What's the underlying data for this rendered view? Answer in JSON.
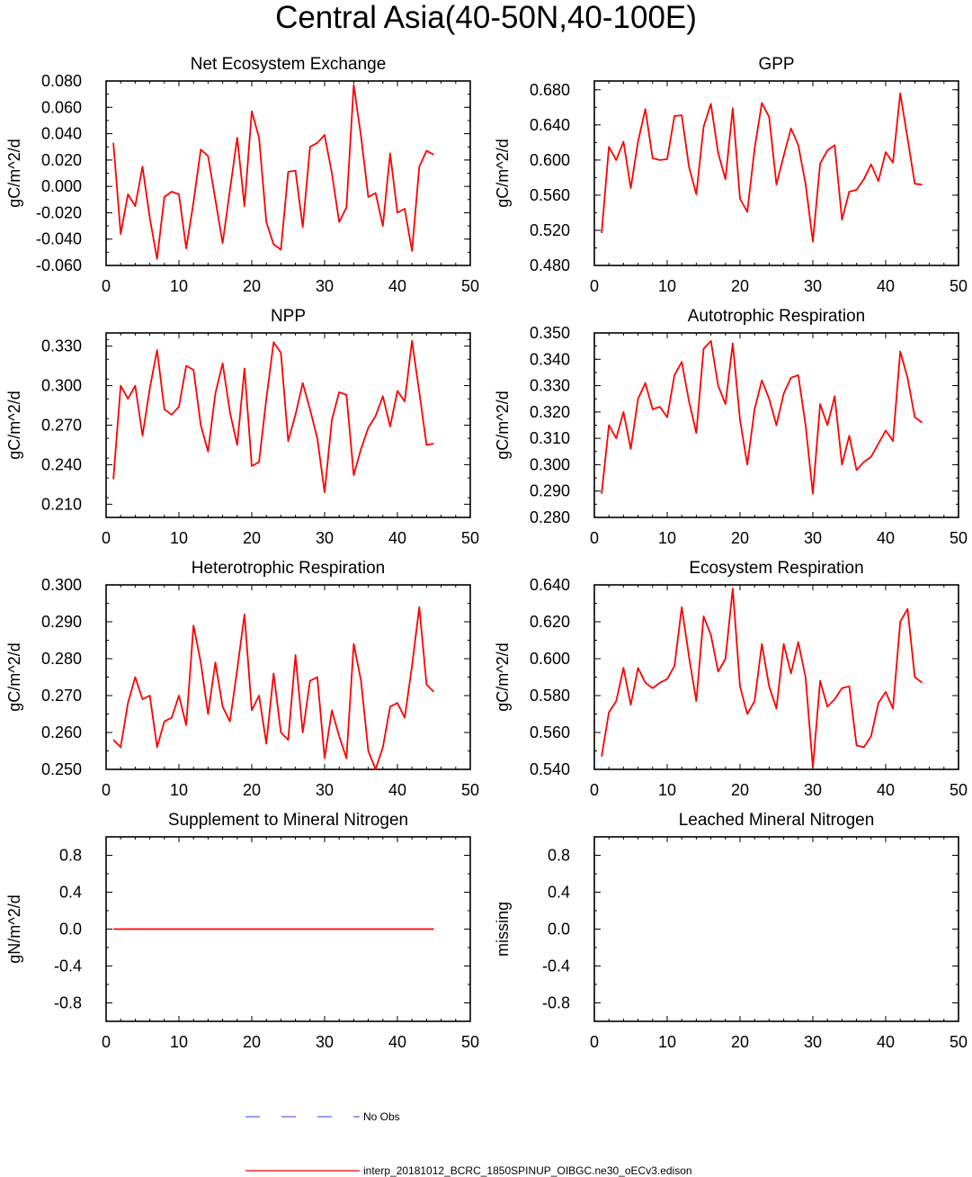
{
  "figure_title": "Central Asia(40-50N,40-100E)",
  "colors": {
    "model_line": "#ff0000",
    "obs_line": "#6060ff",
    "axes": "#000000"
  },
  "legend": [
    {
      "label": "No Obs",
      "style": "dashed",
      "color": "#6060ff"
    },
    {
      "label": "interp_20181012_BCRC_1850SPINUP_OIBGC.ne30_oECv3.edison",
      "style": "solid",
      "color": "#ff0000"
    }
  ],
  "chart_data": [
    {
      "type": "line",
      "title": "Net Ecosystem Exchange",
      "ylabel": "gC/m^2/d",
      "xlim": [
        0,
        50
      ],
      "ylim": [
        -0.06,
        0.08
      ],
      "xticks": [
        0,
        10,
        20,
        30,
        40,
        50
      ],
      "yticks": [
        "-0.060",
        "-0.040",
        "-0.020",
        "0.000",
        "0.020",
        "0.040",
        "0.060",
        "0.080"
      ],
      "series": [
        {
          "values": [
            0.033,
            -0.036,
            -0.006,
            -0.015,
            0.015,
            -0.024,
            -0.055,
            -0.008,
            -0.004,
            -0.006,
            -0.047,
            -0.012,
            0.028,
            0.023,
            -0.01,
            -0.043,
            -0.003,
            0.037,
            -0.015,
            0.057,
            0.037,
            -0.027,
            -0.044,
            -0.048,
            0.011,
            0.012,
            -0.031,
            0.03,
            0.033,
            0.039,
            0.01,
            -0.027,
            -0.016,
            0.077,
            0.038,
            -0.008,
            -0.005,
            -0.03,
            0.025,
            -0.02,
            -0.017,
            -0.049,
            0.015,
            0.027,
            0.024
          ]
        }
      ]
    },
    {
      "type": "line",
      "title": "GPP",
      "ylabel": "gC/m^2/d",
      "xlim": [
        0,
        50
      ],
      "ylim": [
        0.48,
        0.69
      ],
      "xticks": [
        0,
        10,
        20,
        30,
        40,
        50
      ],
      "yticks": [
        "0.480",
        "0.520",
        "0.560",
        "0.600",
        "0.640",
        "0.680"
      ],
      "series": [
        {
          "values": [
            0.517,
            0.615,
            0.6,
            0.621,
            0.568,
            0.621,
            0.658,
            0.602,
            0.6,
            0.601,
            0.65,
            0.651,
            0.592,
            0.561,
            0.638,
            0.664,
            0.608,
            0.578,
            0.659,
            0.556,
            0.541,
            0.613,
            0.665,
            0.649,
            0.572,
            0.605,
            0.636,
            0.617,
            0.573,
            0.507,
            0.596,
            0.611,
            0.617,
            0.532,
            0.564,
            0.566,
            0.578,
            0.595,
            0.576,
            0.609,
            0.597,
            0.676,
            0.625,
            0.573,
            0.572
          ]
        }
      ]
    },
    {
      "type": "line",
      "title": "NPP",
      "ylabel": "gC/m^2/d",
      "xlim": [
        0,
        50
      ],
      "ylim": [
        0.2,
        0.34
      ],
      "xticks": [
        0,
        10,
        20,
        30,
        40,
        50
      ],
      "yticks": [
        "0.210",
        "0.240",
        "0.270",
        "0.300",
        "0.330"
      ],
      "series": [
        {
          "values": [
            0.229,
            0.3,
            0.29,
            0.3,
            0.262,
            0.298,
            0.327,
            0.282,
            0.278,
            0.284,
            0.315,
            0.312,
            0.27,
            0.25,
            0.294,
            0.317,
            0.28,
            0.255,
            0.313,
            0.239,
            0.242,
            0.29,
            0.333,
            0.325,
            0.258,
            0.278,
            0.302,
            0.282,
            0.26,
            0.219,
            0.274,
            0.295,
            0.293,
            0.232,
            0.252,
            0.268,
            0.277,
            0.292,
            0.269,
            0.296,
            0.288,
            0.334,
            0.295,
            0.255,
            0.256
          ]
        }
      ]
    },
    {
      "type": "line",
      "title": "Autotrophic Respiration",
      "ylabel": "gC/m^2/d",
      "xlim": [
        0,
        50
      ],
      "ylim": [
        0.28,
        0.35
      ],
      "xticks": [
        0,
        10,
        20,
        30,
        40,
        50
      ],
      "yticks": [
        "0.280",
        "0.290",
        "0.300",
        "0.310",
        "0.320",
        "0.330",
        "0.340",
        "0.350"
      ],
      "series": [
        {
          "values": [
            0.289,
            0.315,
            0.31,
            0.32,
            0.306,
            0.325,
            0.331,
            0.321,
            0.322,
            0.318,
            0.334,
            0.339,
            0.324,
            0.312,
            0.344,
            0.347,
            0.33,
            0.323,
            0.346,
            0.317,
            0.3,
            0.321,
            0.332,
            0.325,
            0.315,
            0.327,
            0.333,
            0.334,
            0.315,
            0.289,
            0.323,
            0.315,
            0.326,
            0.3,
            0.311,
            0.298,
            0.301,
            0.303,
            0.308,
            0.313,
            0.309,
            0.343,
            0.333,
            0.318,
            0.316
          ]
        }
      ]
    },
    {
      "type": "line",
      "title": "Heterotrophic Respiration",
      "ylabel": "gC/m^2/d",
      "xlim": [
        0,
        50
      ],
      "ylim": [
        0.25,
        0.3
      ],
      "xticks": [
        0,
        10,
        20,
        30,
        40,
        50
      ],
      "yticks": [
        "0.250",
        "0.260",
        "0.270",
        "0.280",
        "0.290",
        "0.300"
      ],
      "series": [
        {
          "values": [
            0.258,
            0.256,
            0.268,
            0.275,
            0.269,
            0.27,
            0.256,
            0.263,
            0.264,
            0.27,
            0.262,
            0.289,
            0.279,
            0.265,
            0.279,
            0.267,
            0.263,
            0.277,
            0.292,
            0.266,
            0.27,
            0.257,
            0.276,
            0.26,
            0.258,
            0.281,
            0.26,
            0.274,
            0.275,
            0.253,
            0.266,
            0.259,
            0.253,
            0.284,
            0.274,
            0.255,
            0.25,
            0.256,
            0.267,
            0.268,
            0.264,
            0.278,
            0.294,
            0.273,
            0.271
          ]
        }
      ]
    },
    {
      "type": "line",
      "title": "Ecosystem Respiration",
      "ylabel": "gC/m^2/d",
      "xlim": [
        0,
        50
      ],
      "ylim": [
        0.54,
        0.64
      ],
      "xticks": [
        0,
        10,
        20,
        30,
        40,
        50
      ],
      "yticks": [
        "0.540",
        "0.560",
        "0.580",
        "0.600",
        "0.620",
        "0.640"
      ],
      "series": [
        {
          "values": [
            0.547,
            0.571,
            0.577,
            0.595,
            0.575,
            0.595,
            0.587,
            0.584,
            0.587,
            0.589,
            0.596,
            0.628,
            0.601,
            0.577,
            0.623,
            0.613,
            0.593,
            0.6,
            0.638,
            0.585,
            0.57,
            0.577,
            0.608,
            0.585,
            0.573,
            0.608,
            0.592,
            0.609,
            0.59,
            0.541,
            0.588,
            0.574,
            0.578,
            0.584,
            0.585,
            0.553,
            0.552,
            0.558,
            0.576,
            0.582,
            0.573,
            0.62,
            0.627,
            0.59,
            0.587
          ]
        }
      ]
    },
    {
      "type": "line",
      "title": "Supplement to Mineral Nitrogen",
      "ylabel": "gN/m^2/d",
      "xlim": [
        0,
        50
      ],
      "ylim": [
        -1,
        1
      ],
      "xticks": [
        0,
        10,
        20,
        30,
        40,
        50
      ],
      "yticks": [
        "-0.8",
        "-0.4",
        "0.0",
        "0.4",
        "0.8"
      ],
      "series": [
        {
          "values": [
            0,
            0,
            0,
            0,
            0,
            0,
            0,
            0,
            0,
            0,
            0,
            0,
            0,
            0,
            0,
            0,
            0,
            0,
            0,
            0,
            0,
            0,
            0,
            0,
            0,
            0,
            0,
            0,
            0,
            0,
            0,
            0,
            0,
            0,
            0,
            0,
            0,
            0,
            0,
            0,
            0,
            0,
            0,
            0,
            0
          ]
        }
      ]
    },
    {
      "type": "line",
      "title": "Leached Mineral Nitrogen",
      "ylabel": "missing",
      "xlim": [
        0,
        50
      ],
      "ylim": [
        -1,
        1
      ],
      "xticks": [
        0,
        10,
        20,
        30,
        40,
        50
      ],
      "yticks": [
        "-0.8",
        "-0.4",
        "0.0",
        "0.4",
        "0.8"
      ],
      "series": []
    }
  ]
}
